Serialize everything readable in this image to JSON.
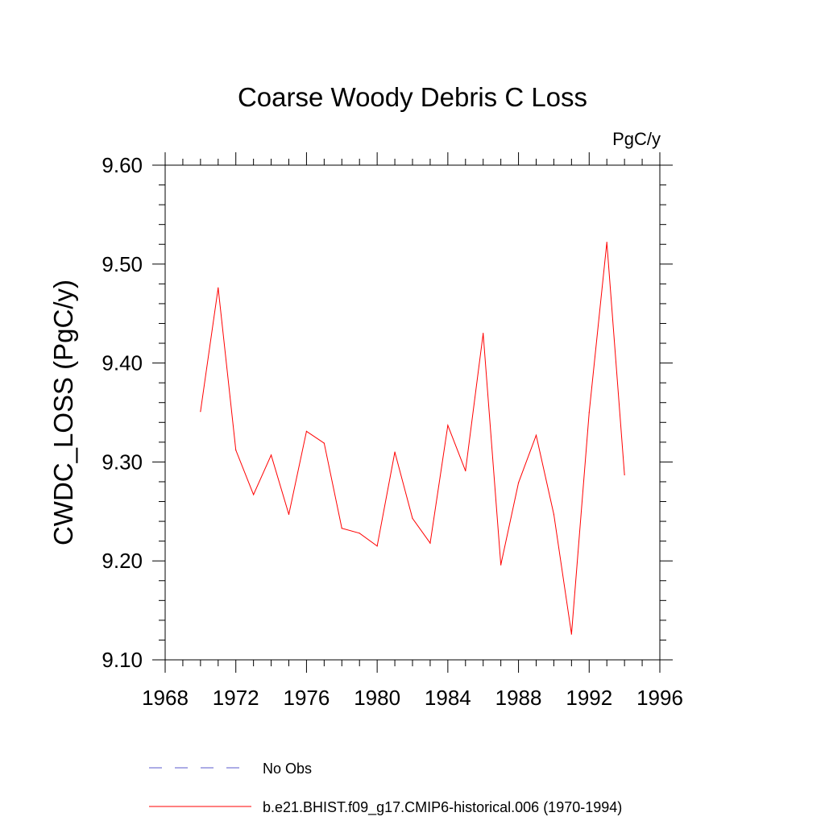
{
  "chart_data": {
    "type": "line",
    "title": "Coarse Woody Debris C Loss",
    "units_label": "PgC/y",
    "ylabel": "CWDC_LOSS  (PgC/y)",
    "xlabel": "",
    "xlim": [
      1968,
      1996
    ],
    "ylim": [
      9.1,
      9.6
    ],
    "x_ticks": [
      "1968",
      "1972",
      "1976",
      "1980",
      "1984",
      "1988",
      "1992",
      "1996"
    ],
    "y_ticks": [
      "9.10",
      "9.20",
      "9.30",
      "9.40",
      "9.50",
      "9.60"
    ],
    "grid": false,
    "legend_position": "bottom",
    "series": [
      {
        "name": "No Obs",
        "color": "#5a5acd",
        "style": "dashed",
        "x": [],
        "values": []
      },
      {
        "name": "b.e21.BHIST.f09_g17.CMIP6-historical.006 (1970-1994)",
        "color": "#ff0000",
        "style": "solid",
        "x": [
          1970,
          1971,
          1972,
          1973,
          1974,
          1975,
          1976,
          1977,
          1978,
          1979,
          1980,
          1981,
          1982,
          1983,
          1984,
          1985,
          1986,
          1987,
          1988,
          1989,
          1990,
          1991,
          1992,
          1993,
          1994
        ],
        "values": [
          9.351,
          9.476,
          9.312,
          9.267,
          9.307,
          9.247,
          9.331,
          9.319,
          9.233,
          9.228,
          9.215,
          9.31,
          9.243,
          9.218,
          9.337,
          9.291,
          9.43,
          9.196,
          9.279,
          9.327,
          9.247,
          9.126,
          9.35,
          9.522,
          9.287
        ]
      }
    ]
  }
}
